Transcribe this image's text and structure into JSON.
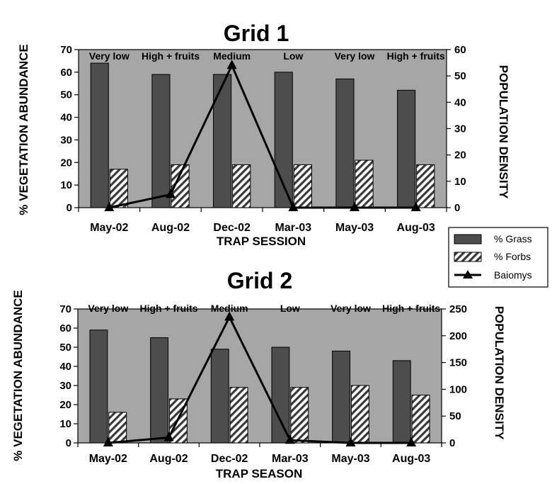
{
  "chart_data": [
    {
      "type": "bar",
      "title": "Grid 1",
      "xlabel": "TRAP SESSION",
      "ylabel": "% VEGETATION ABUNDANCE",
      "y2label": "POPULATION DENSITY",
      "categories": [
        "May-02",
        "Aug-02",
        "Dec-02",
        "Mar-03",
        "May-03",
        "Aug-03"
      ],
      "annotations": [
        "Very low",
        "High + fruits",
        "Medium",
        "Low",
        "Very low",
        "High + fruits"
      ],
      "ylim": [
        0,
        70
      ],
      "yticks": [
        0,
        10,
        20,
        30,
        40,
        50,
        60,
        70
      ],
      "y2lim": [
        0,
        60
      ],
      "y2ticks": [
        0,
        10,
        20,
        30,
        40,
        50,
        60
      ],
      "series": [
        {
          "name": "% Grass",
          "kind": "bar",
          "axis": "left",
          "values": [
            64,
            59,
            59,
            60,
            57,
            52
          ]
        },
        {
          "name": "% Forbs",
          "kind": "bar",
          "axis": "left",
          "values": [
            17,
            19,
            19,
            19,
            21,
            19
          ]
        },
        {
          "name": "Baiomys",
          "kind": "line",
          "axis": "right",
          "values": [
            0,
            5,
            54,
            0,
            0,
            0
          ]
        }
      ],
      "grid": false,
      "background": "#a6a6a6"
    },
    {
      "type": "bar",
      "title": "Grid 2",
      "xlabel": "TRAP SEASON",
      "ylabel": "% VEGETATION ABUNDANCE",
      "y2label": "POPULATION DENSITY",
      "categories": [
        "May-02",
        "Aug-02",
        "Dec-02",
        "Mar-03",
        "May-03",
        "Aug-03"
      ],
      "annotations": [
        "Very low",
        "High + fruits",
        "Medium",
        "Low",
        "Very low",
        "High + fruits"
      ],
      "ylim": [
        0,
        70
      ],
      "yticks": [
        0,
        10,
        20,
        30,
        40,
        50,
        60,
        70
      ],
      "y2lim": [
        0,
        250
      ],
      "y2ticks": [
        0,
        50,
        100,
        150,
        200,
        250
      ],
      "series": [
        {
          "name": "% Grass",
          "kind": "bar",
          "axis": "left",
          "values": [
            59,
            55,
            49,
            50,
            48,
            43
          ]
        },
        {
          "name": "% Forbs",
          "kind": "bar",
          "axis": "left",
          "values": [
            16,
            23,
            29,
            29,
            30,
            25
          ]
        },
        {
          "name": "Baiomys",
          "kind": "line",
          "axis": "right",
          "values": [
            0,
            10,
            235,
            5,
            0,
            0
          ]
        }
      ],
      "grid": false,
      "background": "#a6a6a6"
    }
  ],
  "legend": {
    "placement": "right-middle",
    "entries": [
      {
        "label": "% Grass",
        "kind": "bar-solid"
      },
      {
        "label": "% Forbs",
        "kind": "bar-hatched"
      },
      {
        "label": "Baiomys",
        "kind": "line-triangle"
      }
    ]
  },
  "colors": {
    "plot_bg": "#a6a6a6",
    "grass": "#4d4d4d",
    "forbs_stripe": "#3a3a3a",
    "line": "#000000"
  }
}
